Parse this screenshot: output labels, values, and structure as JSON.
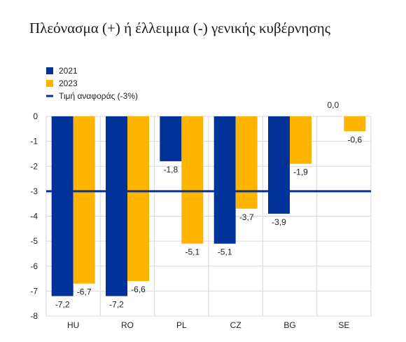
{
  "chart_data": {
    "type": "bar",
    "title": "Πλεόνασμα (+) ή έλλειμμα (-) γενικής κυβέρνησης",
    "categories": [
      "HU",
      "RO",
      "PL",
      "CZ",
      "BG",
      "SE"
    ],
    "series": [
      {
        "name": "2021",
        "values": [
          -7.2,
          -7.2,
          -1.8,
          -5.1,
          -3.9,
          0.0
        ],
        "labels": [
          "-7,2",
          "-7,2",
          "-1,8",
          "-5,1",
          "-3,9",
          "0,0"
        ],
        "color": "#003299"
      },
      {
        "name": "2023",
        "values": [
          -6.7,
          -6.6,
          -5.1,
          -3.7,
          -1.9,
          -0.6
        ],
        "labels": [
          "-6,7",
          "-6,6",
          "-5,1",
          "-3,7",
          "-1,9",
          "-0,6"
        ],
        "color": "#FFB400"
      }
    ],
    "reference_line": {
      "name": "Τιμή αναφοράς (-3%)",
      "value": -3,
      "color": "#003299"
    },
    "yticks": [
      "0",
      "-1",
      "-2",
      "-3",
      "-4",
      "-5",
      "-6",
      "-7",
      "-8"
    ],
    "ylim": [
      -8,
      0
    ],
    "legend_position": "top-left",
    "grid": true
  }
}
